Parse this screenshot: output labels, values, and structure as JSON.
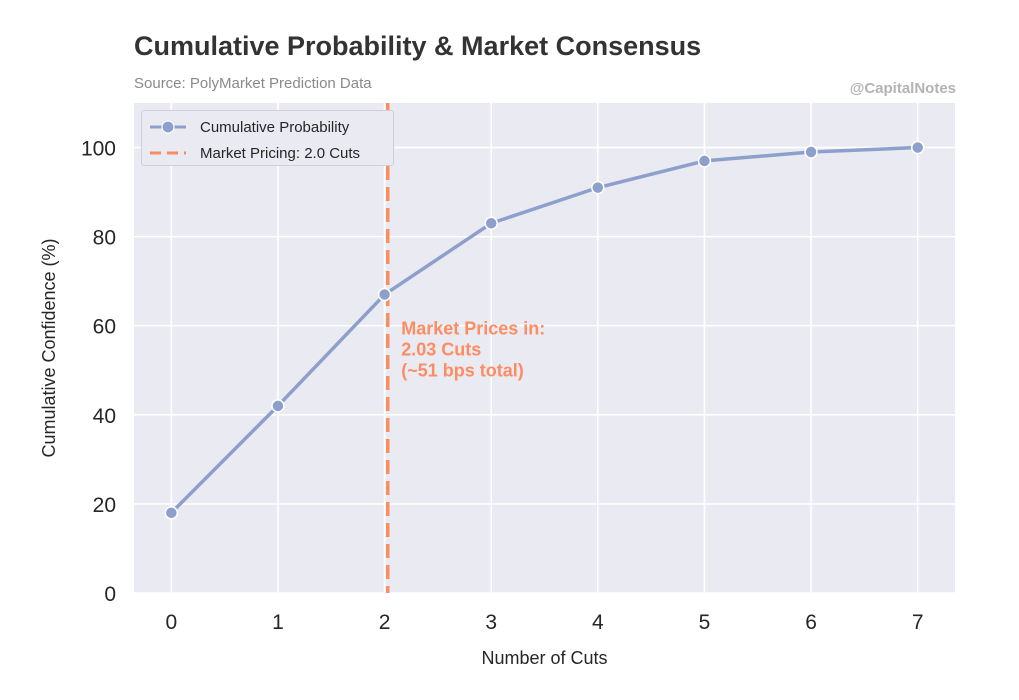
{
  "header": {
    "title": "Cumulative Probability & Market Consensus",
    "subtitle": "Source: PolyMarket Prediction Data",
    "watermark": "@CapitalNotes"
  },
  "chart_data": {
    "type": "line",
    "title": "Cumulative Probability & Market Consensus",
    "subtitle": "Source: PolyMarket Prediction Data",
    "xlabel": "Number of Cuts",
    "ylabel": "Cumulative Confidence (%)",
    "x_ticks": [
      0,
      1,
      2,
      3,
      4,
      5,
      6,
      7
    ],
    "y_ticks": [
      0,
      20,
      40,
      60,
      80,
      100
    ],
    "xlim": [
      -0.35,
      7.35
    ],
    "ylim": [
      0,
      110
    ],
    "grid": true,
    "legend_position": "top-left",
    "series": [
      {
        "name": "Cumulative Probability",
        "x": [
          0,
          1,
          2,
          3,
          4,
          5,
          6,
          7
        ],
        "values": [
          18,
          42,
          67,
          83,
          91,
          97,
          99,
          100
        ],
        "color": "#8da0cb",
        "marker": "circle"
      }
    ],
    "reference_lines": [
      {
        "name": "Market Pricing: 2.0 Cuts",
        "orientation": "vertical",
        "x": 2.03,
        "color": "#fc8d62",
        "style": "dashed"
      }
    ],
    "annotation": {
      "lines": [
        "Market Prices in:",
        "2.03 Cuts",
        "(~51 bps total)"
      ],
      "x": 2.1,
      "y": 58,
      "color": "#fc8d62"
    }
  },
  "colors": {
    "plot_background": "#eaeaf2",
    "grid": "#ffffff",
    "series": "#8da0cb",
    "reference": "#fc8d62"
  }
}
